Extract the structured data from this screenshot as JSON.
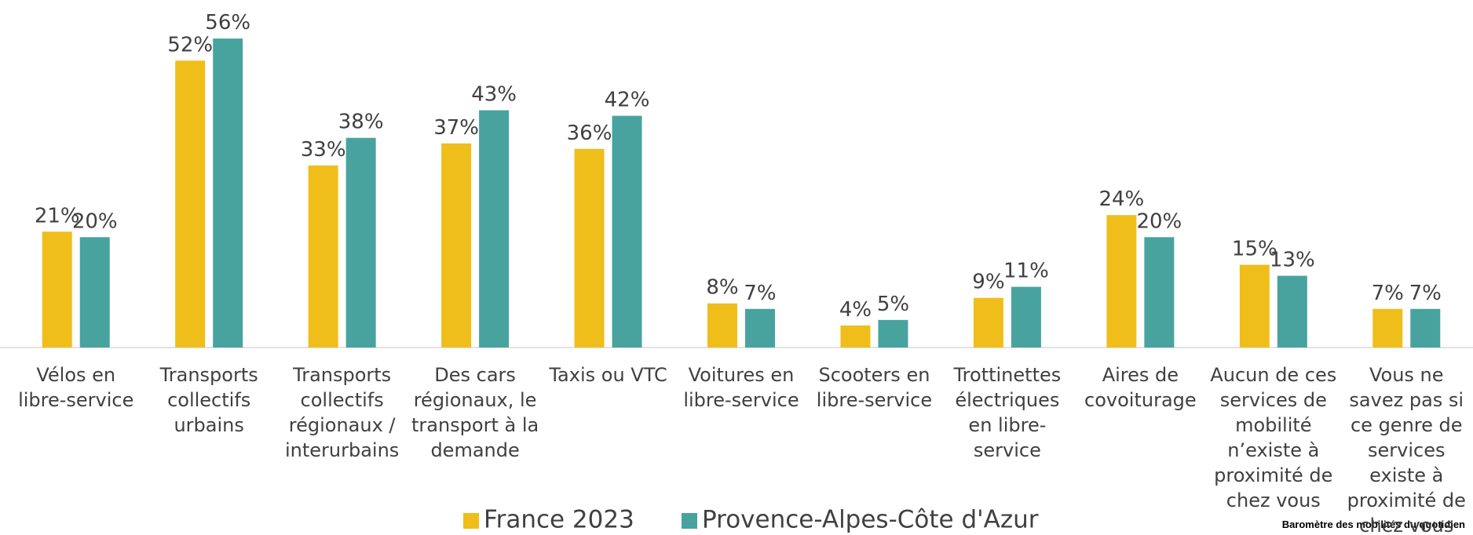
{
  "chart_data": {
    "type": "bar",
    "categories": [
      "Vélos en libre-service",
      "Transports collectifs urbains",
      "Transports collectifs régionaux / interurbains",
      "Des cars régionaux, le transport à la demande",
      "Taxis ou VTC",
      "Voitures en libre-service",
      "Scooters en libre-service",
      "Trottinettes électriques en libre-service",
      "Aires de covoiturage",
      "Aucun de ces services de mobilité n’existe à proximité de chez vous",
      "Vous ne savez pas si ce genre de services existe à proximité de chez vous"
    ],
    "series": [
      {
        "name": "France 2023",
        "color": "#f0be1a",
        "values": [
          21,
          52,
          33,
          37,
          36,
          8,
          4,
          9,
          24,
          15,
          7
        ],
        "value_labels": [
          "21%",
          "52%",
          "33%",
          "37%",
          "36%",
          "8%",
          "4%",
          "9%",
          "24%",
          "15%",
          "7%"
        ]
      },
      {
        "name": "Provence-Alpes-Côte d'Azur",
        "color": "#48a39f",
        "values": [
          20,
          56,
          38,
          43,
          42,
          7,
          5,
          11,
          20,
          13,
          7
        ],
        "value_labels": [
          "20%",
          "56%",
          "38%",
          "43%",
          "42%",
          "7%",
          "5%",
          "11%",
          "20%",
          "13%",
          "7%"
        ]
      }
    ],
    "ylim": [
      0,
      60
    ],
    "legend": "bottom",
    "source": "Baromètre des mobilités du quotidien"
  }
}
